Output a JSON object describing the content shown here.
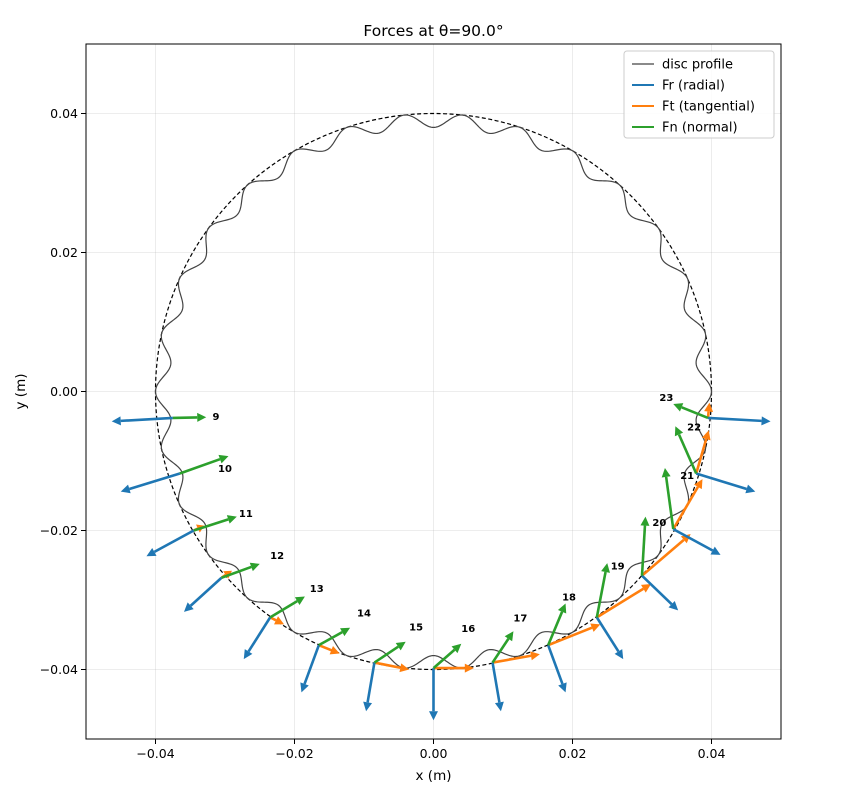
{
  "chart_data": {
    "type": "line",
    "title": "Forces at θ=90.0°",
    "xlabel": "x (m)",
    "ylabel": "y (m)",
    "xlim": [
      -0.05,
      0.05
    ],
    "ylim": [
      -0.05,
      0.05
    ],
    "xticks": [
      -0.04,
      -0.02,
      0.0,
      0.02,
      0.04
    ],
    "yticks": [
      -0.04,
      -0.02,
      0.0,
      0.02,
      0.04
    ],
    "xtick_labels": [
      "−0.04",
      "−0.02",
      "0.00",
      "0.02",
      "0.04"
    ],
    "ytick_labels": [
      "−0.04",
      "−0.02",
      "0.00",
      "0.02",
      "0.04"
    ],
    "grid": true,
    "legend_position": "top-right",
    "equal_aspect": true,
    "pitch_circle": {
      "radius": 0.04,
      "style": "dashed",
      "color": "#000000"
    },
    "disc_profile": {
      "base_radius": 0.039,
      "lobes": 30,
      "amplitude": 0.001,
      "color": "#444444"
    },
    "series": [
      {
        "name": "disc profile",
        "color": "#444444"
      },
      {
        "name": "Fr (radial)",
        "color": "#1f77b4"
      },
      {
        "name": "Ft (tangential)",
        "color": "#ff7f0e"
      },
      {
        "name": "Fn (normal)",
        "color": "#2ca02c"
      }
    ],
    "rollers": [
      {
        "id": "9",
        "label": "9",
        "x": -0.0375,
        "y": -0.0038,
        "Fr": [
          -0.0088,
          -0.0005
        ],
        "Ft": [
          0.0,
          0.0
        ],
        "Fn": [
          0.0048,
          0.0001
        ],
        "label_pos": [
          -0.0318,
          -0.0035
        ]
      },
      {
        "id": "10",
        "label": "10",
        "x": -0.0365,
        "y": -0.0118,
        "Fr": [
          -0.0085,
          -0.0026
        ],
        "Ft": [
          0.0,
          0.0
        ],
        "Fn": [
          0.007,
          0.0025
        ],
        "label_pos": [
          -0.031,
          -0.011
        ]
      },
      {
        "id": "11",
        "label": "11",
        "x": -0.0345,
        "y": -0.02,
        "Fr": [
          -0.0068,
          -0.0037
        ],
        "Ft": [
          0.0015,
          0.0007
        ],
        "Fn": [
          0.0062,
          0.002
        ],
        "label_pos": [
          -0.028,
          -0.0175
        ]
      },
      {
        "id": "12",
        "label": "12",
        "x": -0.0305,
        "y": -0.0268,
        "Fr": [
          -0.0054,
          -0.0049
        ],
        "Ft": [
          0.0015,
          0.001
        ],
        "Fn": [
          0.0055,
          0.002
        ],
        "label_pos": [
          -0.0235,
          -0.0235
        ]
      },
      {
        "id": "13",
        "label": "13",
        "x": -0.0235,
        "y": -0.0325,
        "Fr": [
          -0.0038,
          -0.006
        ],
        "Ft": [
          0.002,
          -0.001
        ],
        "Fn": [
          0.005,
          0.003
        ],
        "label_pos": [
          -0.0178,
          -0.0283
        ]
      },
      {
        "id": "14",
        "label": "14",
        "x": -0.0165,
        "y": -0.0365,
        "Fr": [
          -0.0025,
          -0.0068
        ],
        "Ft": [
          0.003,
          -0.0012
        ],
        "Fn": [
          0.0045,
          0.0025
        ],
        "label_pos": [
          -0.011,
          -0.0318
        ]
      },
      {
        "id": "15",
        "label": "15",
        "x": -0.0085,
        "y": -0.039,
        "Fr": [
          -0.0012,
          -0.007
        ],
        "Ft": [
          0.005,
          -0.001
        ],
        "Fn": [
          0.0045,
          0.003
        ],
        "label_pos": [
          -0.0035,
          -0.0338
        ]
      },
      {
        "id": "16",
        "label": "16",
        "x": 0.0,
        "y": -0.0398,
        "Fr": [
          0.0,
          -0.0075
        ],
        "Ft": [
          0.0058,
          0.0
        ],
        "Fn": [
          0.004,
          0.0035
        ],
        "label_pos": [
          0.004,
          -0.034
        ]
      },
      {
        "id": "17",
        "label": "17",
        "x": 0.0085,
        "y": -0.039,
        "Fr": [
          0.0012,
          -0.007
        ],
        "Ft": [
          0.0068,
          0.0012
        ],
        "Fn": [
          0.003,
          0.0045
        ],
        "label_pos": [
          0.0115,
          -0.0325
        ]
      },
      {
        "id": "18",
        "label": "18",
        "x": 0.0165,
        "y": -0.0365,
        "Fr": [
          0.0025,
          -0.0068
        ],
        "Ft": [
          0.0075,
          0.003
        ],
        "Fn": [
          0.0025,
          0.006
        ],
        "label_pos": [
          0.0185,
          -0.0295
        ]
      },
      {
        "id": "19",
        "label": "19",
        "x": 0.0235,
        "y": -0.0325,
        "Fr": [
          0.0038,
          -0.006
        ],
        "Ft": [
          0.0078,
          0.0048
        ],
        "Fn": [
          0.0015,
          0.0078
        ],
        "label_pos": [
          0.0255,
          -0.025
        ]
      },
      {
        "id": "20",
        "label": "20",
        "x": 0.03,
        "y": -0.0265,
        "Fr": [
          0.0052,
          -0.005
        ],
        "Ft": [
          0.007,
          0.006
        ],
        "Fn": [
          0.0005,
          0.0085
        ],
        "label_pos": [
          0.0315,
          -0.0188
        ]
      },
      {
        "id": "21",
        "label": "21",
        "x": 0.0345,
        "y": -0.0198,
        "Fr": [
          0.0068,
          -0.0037
        ],
        "Ft": [
          0.0042,
          0.0072
        ],
        "Fn": [
          -0.0012,
          0.0088
        ],
        "label_pos": [
          0.0355,
          -0.012
        ]
      },
      {
        "id": "22",
        "label": "22",
        "x": 0.0378,
        "y": -0.0118,
        "Fr": [
          0.0085,
          -0.0026
        ],
        "Ft": [
          0.0018,
          0.0062
        ],
        "Fn": [
          -0.003,
          0.0068
        ],
        "label_pos": [
          0.0365,
          -0.005
        ]
      },
      {
        "id": "23",
        "label": "23",
        "x": 0.0395,
        "y": -0.0038,
        "Fr": [
          0.009,
          -0.0005
        ],
        "Ft": [
          0.0002,
          0.0022
        ],
        "Fn": [
          -0.005,
          0.002
        ],
        "label_pos": [
          0.0325,
          -0.0008
        ]
      }
    ]
  }
}
